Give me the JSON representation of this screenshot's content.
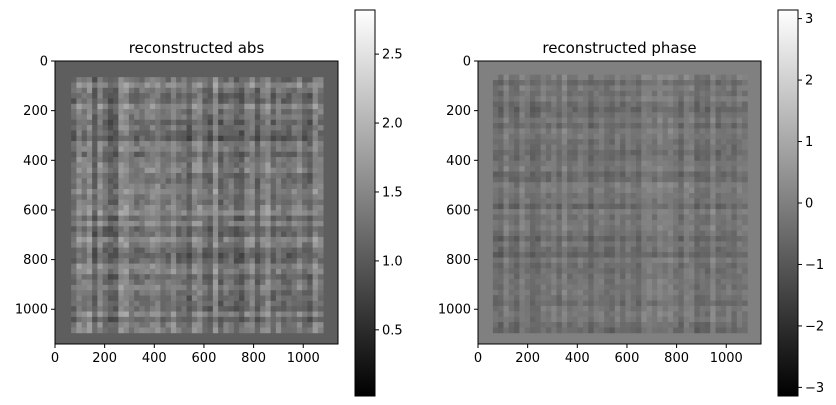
{
  "chart_data": [
    {
      "type": "heatmap",
      "title": "reconstructed abs",
      "xlabel": "",
      "ylabel": "",
      "xlim": [
        0,
        1140
      ],
      "ylim": [
        1140,
        0
      ],
      "x_ticks": [
        0,
        200,
        400,
        600,
        800,
        1000
      ],
      "y_ticks": [
        0,
        200,
        400,
        600,
        800,
        1000
      ],
      "x_tick_labels": [
        "0",
        "200",
        "400",
        "600",
        "800",
        "1000"
      ],
      "y_tick_labels": [
        "0",
        "200",
        "400",
        "600",
        "800",
        "1000"
      ],
      "colormap": "gray",
      "colorbar": {
        "min": 0.02,
        "max": 2.82,
        "ticks": [
          0.5,
          1.0,
          1.5,
          2.0,
          2.5
        ],
        "tick_labels": [
          "0.5",
          "1.0",
          "1.5",
          "2.0",
          "2.5"
        ]
      },
      "background_value": 1.05,
      "content_region": {
        "x": [
          65,
          1080
        ],
        "y": [
          65,
          1095
        ]
      },
      "content_mean": 1.3,
      "content_spread": 1.0
    },
    {
      "type": "heatmap",
      "title": "reconstructed phase",
      "xlabel": "",
      "ylabel": "",
      "xlim": [
        0,
        1140
      ],
      "ylim": [
        1140,
        0
      ],
      "x_ticks": [
        0,
        200,
        400,
        600,
        800,
        1000
      ],
      "y_ticks": [
        0,
        200,
        400,
        600,
        800,
        1000
      ],
      "x_tick_labels": [
        "0",
        "200",
        "400",
        "600",
        "800",
        "1000"
      ],
      "y_tick_labels": [
        "0",
        "200",
        "400",
        "600",
        "800",
        "1000"
      ],
      "colormap": "gray",
      "colorbar": {
        "min": -3.14,
        "max": 3.14,
        "ticks": [
          -3,
          -2,
          -1,
          0,
          1,
          2,
          3
        ],
        "tick_labels": [
          "−3",
          "−2",
          "−1",
          "0",
          "1",
          "2",
          "3"
        ]
      },
      "background_value": 0.0,
      "content_region": {
        "x": [
          60,
          1085
        ],
        "y": [
          55,
          1095
        ]
      },
      "content_mean": -0.3,
      "content_spread": 1.2
    }
  ]
}
